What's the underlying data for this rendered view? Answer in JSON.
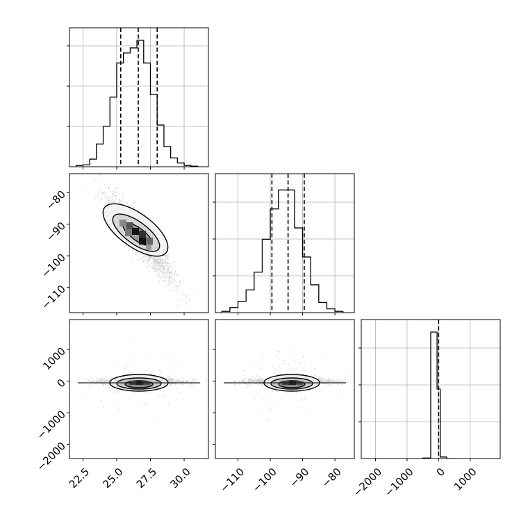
{
  "chart_data": [
    {
      "type": "histogram",
      "panel": "p1",
      "xlim": [
        21.5,
        31.8
      ],
      "grid": true,
      "bins_x": [
        22.0,
        22.5,
        23.0,
        23.5,
        24.0,
        24.5,
        25.0,
        25.5,
        26.0,
        26.5,
        27.0,
        27.5,
        28.0,
        28.5,
        29.0,
        29.5,
        30.0,
        30.5,
        31.0
      ],
      "heights": [
        0.01,
        0.015,
        0.06,
        0.18,
        0.32,
        0.55,
        0.82,
        0.9,
        0.94,
        1.0,
        0.82,
        0.57,
        0.33,
        0.16,
        0.07,
        0.03,
        0.01,
        0.005
      ],
      "quantile_lines": [
        25.3,
        26.6,
        28.0
      ],
      "yticks_count": 4
    },
    {
      "type": "scatter",
      "panel": "p21",
      "xlim": [
        21.5,
        31.8
      ],
      "ylim": [
        -118,
        -74
      ],
      "yticks": [
        "−80",
        "−90",
        "−100",
        "−110"
      ],
      "ytick_values": [
        -80,
        -90,
        -100,
        -110
      ],
      "center": [
        26.8,
        -94.5
      ],
      "contours": [
        "level-1",
        "level-2",
        "level-3"
      ]
    },
    {
      "type": "histogram",
      "panel": "p2",
      "xlim": [
        -117,
        -74
      ],
      "grid": true,
      "bins_x": [
        -115,
        -112.5,
        -110,
        -107.5,
        -105,
        -102.5,
        -100,
        -97.5,
        -95,
        -92.5,
        -90,
        -87.5,
        -85,
        -82.5,
        -80,
        -77.5
      ],
      "heights": [
        0.01,
        0.04,
        0.09,
        0.18,
        0.32,
        0.58,
        0.82,
        0.97,
        0.97,
        0.67,
        0.44,
        0.22,
        0.08,
        0.03,
        0.01
      ],
      "quantile_lines": [
        -99.5,
        -94.5,
        -89.5
      ],
      "yticks_count": 3
    },
    {
      "type": "scatter",
      "panel": "p31",
      "xlim": [
        21.5,
        31.8
      ],
      "ylim": [
        -2450,
        1950
      ],
      "yticks": [
        "1000",
        "0",
        "−1000",
        "−2000"
      ],
      "ytick_values": [
        1000,
        0,
        -1000,
        -2000
      ],
      "xticks": [
        "22.5",
        "25.0",
        "27.5",
        "30.0"
      ],
      "xtick_values": [
        22.5,
        25.0,
        27.5,
        30.0
      ]
    },
    {
      "type": "scatter",
      "panel": "p32",
      "xlim": [
        -117,
        -74
      ],
      "ylim": [
        -2450,
        1950
      ],
      "xticks": [
        "−110",
        "−100",
        "−90",
        "−80"
      ],
      "xtick_values": [
        -110,
        -100,
        -90,
        -80
      ]
    },
    {
      "type": "histogram",
      "panel": "p3",
      "xlim": [
        -2450,
        1950
      ],
      "grid": true,
      "bins_x": [
        -500,
        -250,
        -50,
        50,
        250,
        500
      ],
      "heights": [
        0.004,
        1.0,
        0.55,
        0.012,
        0.0
      ],
      "quantile_lines": [
        0
      ],
      "yticks_count": 3,
      "xticks": [
        "−2000",
        "−1000",
        "0",
        "1000"
      ],
      "xtick_values": [
        -2000,
        -1000,
        0,
        1000
      ]
    }
  ]
}
